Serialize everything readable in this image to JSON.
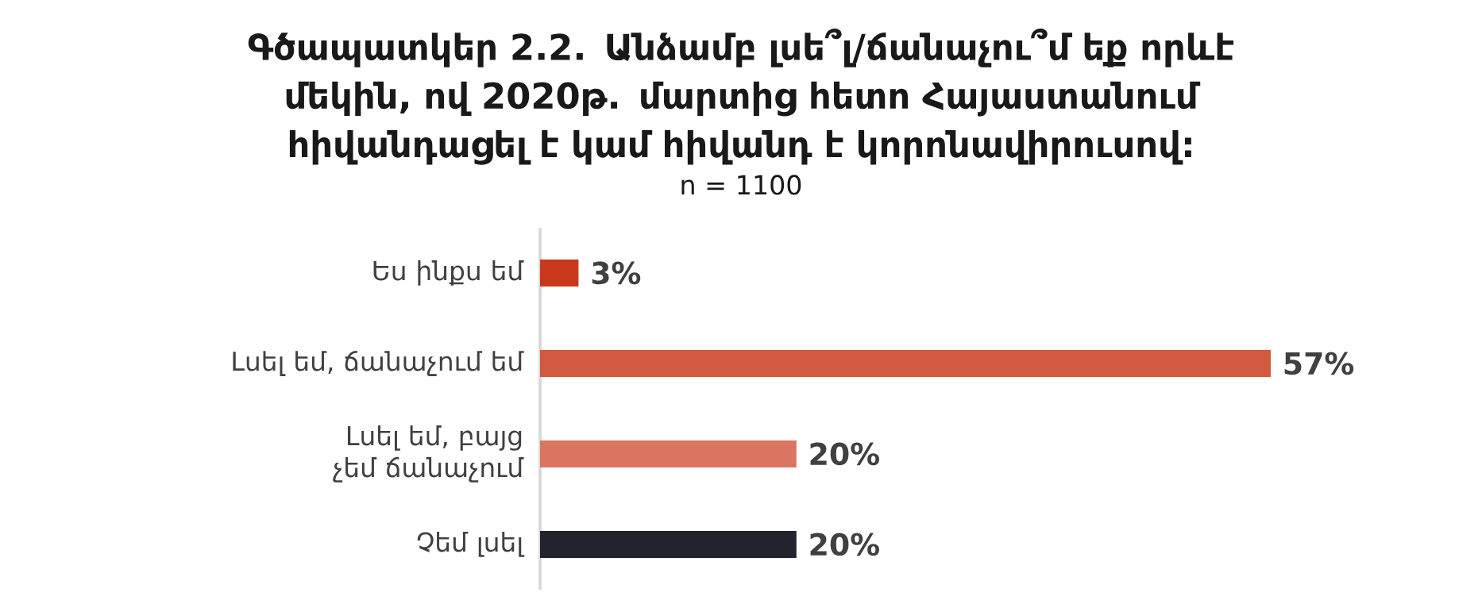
{
  "chart_data": {
    "type": "bar",
    "orientation": "horizontal",
    "title": "Գծապատկեր 2.2. Անձամբ լսե՞լ/ճանաչու՞մ եք որևէ մեկին, ով 2020թ. մարտից հետո Հայաստանում հիվանդացել է կամ հիվանդ է կորոնավիրուսով:",
    "subtitle": "n = 1100",
    "categories": [
      "Ես ինքս եմ",
      "Լսել եմ, ճանաչում եմ",
      "Լսել եմ, բայց չեմ ճանաչում",
      "Չեմ լսել"
    ],
    "values": [
      3,
      57,
      20,
      20
    ],
    "colors": [
      "#c8391b",
      "#cf5a40",
      "#d97560",
      "#21242c"
    ],
    "value_labels": [
      "3%",
      "57%",
      "20%",
      "20%"
    ],
    "tick_labels": "y"
  }
}
